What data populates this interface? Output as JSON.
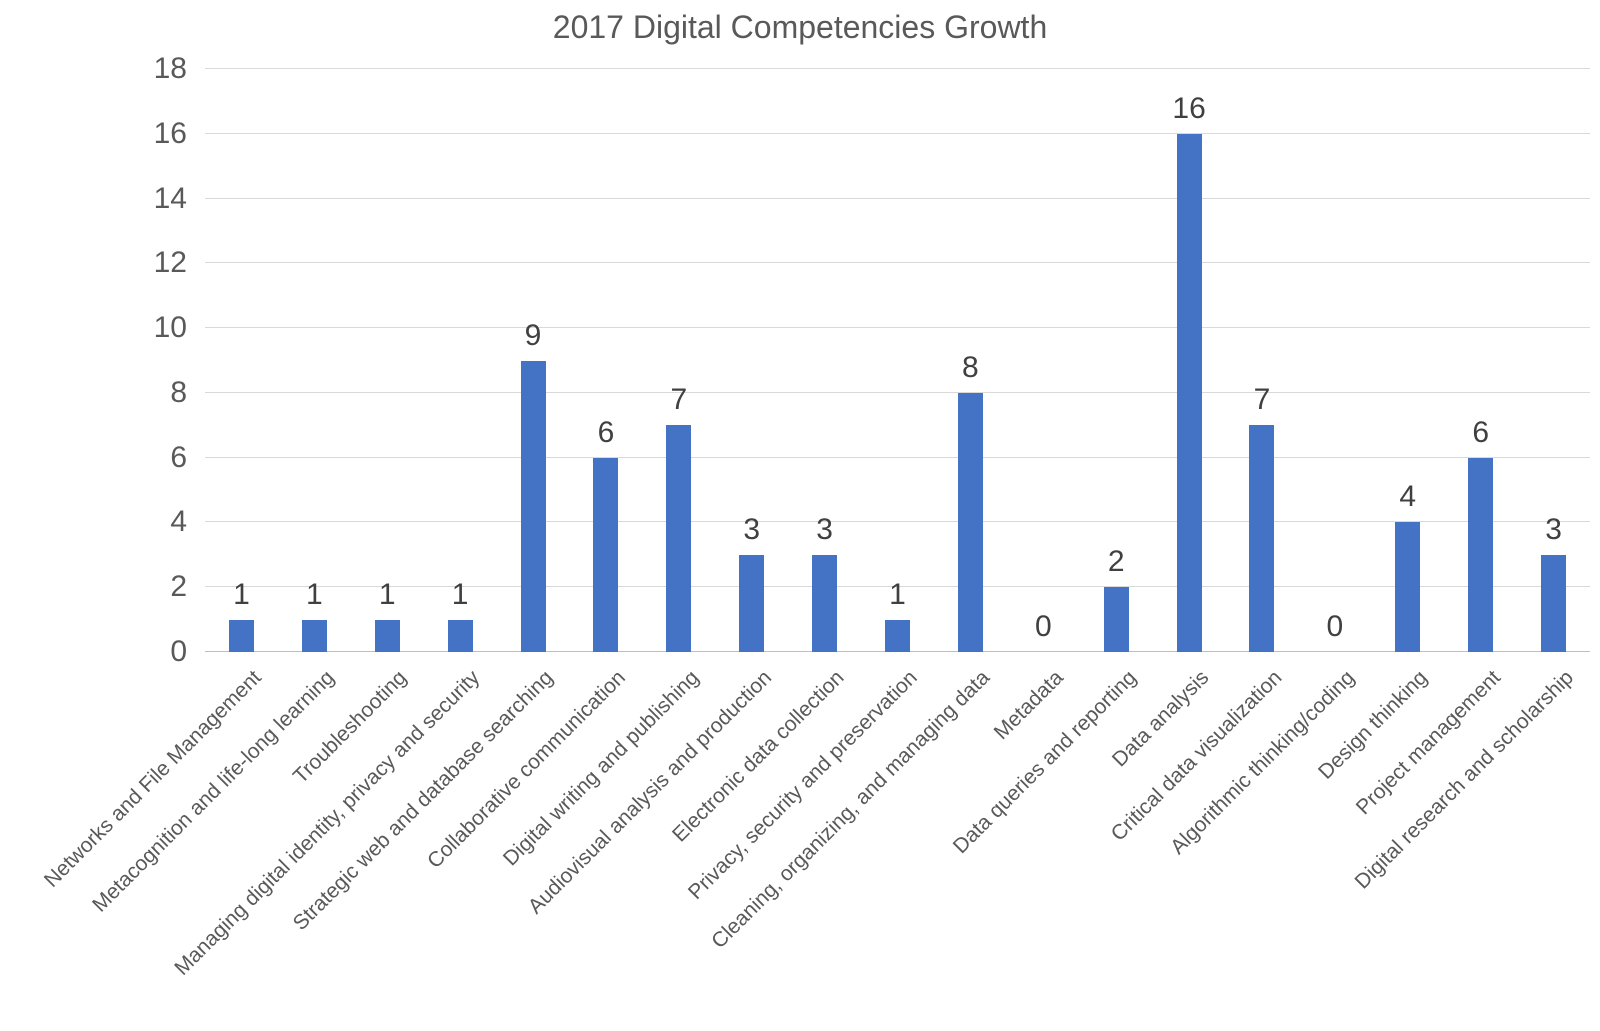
{
  "chart_data": {
    "type": "bar",
    "title": "2017 Digital Competencies Growth",
    "categories": [
      "Networks and File Management",
      "Metacognition and life-long learning",
      "Troubleshooting",
      "Managing digital identity, privacy and security",
      "Strategic web and database searching",
      "Collaborative communication",
      "Digital writing and publishing",
      "Audiovisual analysis and production",
      "Electronic data collection",
      "Privacy, security and preservation",
      "Cleaning, organizing, and managing data",
      "Metadata",
      "Data queries and reporting",
      "Data analysis",
      "Critical data visualization",
      "Algorithmic thinking/coding",
      "Design thinking",
      "Project management",
      "Digital research and scholarship"
    ],
    "values": [
      1,
      1,
      1,
      1,
      9,
      6,
      7,
      3,
      3,
      1,
      8,
      0,
      2,
      16,
      7,
      0,
      4,
      6,
      3
    ],
    "xlabel": "",
    "ylabel": "",
    "ylim": [
      0,
      18
    ],
    "ytick_step": 2,
    "yticks": [
      0,
      2,
      4,
      6,
      8,
      10,
      12,
      14,
      16,
      18
    ],
    "grid": true,
    "legend": false,
    "data_labels": true,
    "x_label_rotation_deg": 45,
    "colors": {
      "bar": "#4472C4",
      "title_text": "#595959",
      "axis_text": "#595959",
      "data_label_text": "#404040",
      "gridline": "#D9D9D9",
      "axis_line": "#BFBFBF",
      "background": "#FFFFFF"
    }
  }
}
